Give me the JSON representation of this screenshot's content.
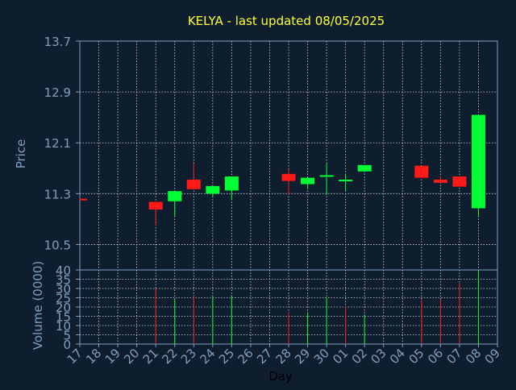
{
  "title": "KELYA - last updated 08/05/2025",
  "colors": {
    "background": "#0f1e2e",
    "title": "#ffff33",
    "axis_text": "#7f9fbf",
    "frame": "#7f9fbf",
    "grid": "#d0d8e0",
    "up": "#00ff33",
    "down": "#ff1a1a"
  },
  "chart_data": [
    {
      "type": "candlestick",
      "ylabel": "Price",
      "ylim": [
        10.1,
        13.7
      ],
      "yticks": [
        "13.7",
        "12.9",
        "12.1",
        "11.3",
        "10.5"
      ],
      "grid": true,
      "candles": [
        {
          "day": "17",
          "open": 11.22,
          "close": 11.2,
          "high": 11.22,
          "low": 11.2
        },
        {
          "day": "21",
          "open": 11.17,
          "close": 11.05,
          "high": 11.17,
          "low": 10.8
        },
        {
          "day": "22",
          "open": 11.18,
          "close": 11.34,
          "high": 11.34,
          "low": 10.95
        },
        {
          "day": "23",
          "open": 11.52,
          "close": 11.37,
          "high": 11.77,
          "low": 11.37
        },
        {
          "day": "24",
          "open": 11.3,
          "close": 11.42,
          "high": 11.42,
          "low": 11.25
        },
        {
          "day": "25",
          "open": 11.35,
          "close": 11.57,
          "high": 11.57,
          "low": 11.2
        },
        {
          "day": "28",
          "open": 11.61,
          "close": 11.5,
          "high": 11.69,
          "low": 11.28
        },
        {
          "day": "29",
          "open": 11.45,
          "close": 11.55,
          "high": 11.55,
          "low": 11.37
        },
        {
          "day": "30",
          "open": 11.57,
          "close": 11.59,
          "high": 11.77,
          "low": 11.28
        },
        {
          "day": "01",
          "open": 11.52,
          "close": 11.52,
          "high": 11.6,
          "low": 11.34
        },
        {
          "day": "02",
          "open": 11.65,
          "close": 11.75,
          "high": 11.75,
          "low": 11.65
        },
        {
          "day": "05",
          "open": 11.74,
          "close": 11.55,
          "high": 11.74,
          "low": 11.55
        },
        {
          "day": "06",
          "open": 11.52,
          "close": 11.47,
          "high": 11.57,
          "low": 11.47
        },
        {
          "day": "07",
          "open": 11.57,
          "close": 11.41,
          "high": 11.57,
          "low": 11.41
        },
        {
          "day": "08",
          "open": 11.07,
          "close": 12.54,
          "high": 12.54,
          "low": 10.95
        }
      ]
    },
    {
      "type": "bar",
      "ylabel": "Volume (0000)",
      "ylim": [
        0,
        40
      ],
      "yticks": [
        "40",
        "35",
        "30",
        "25",
        "20",
        "15",
        "10",
        "5",
        "0"
      ],
      "xlabel": "Day",
      "xticks": [
        "17",
        "18",
        "19",
        "20",
        "21",
        "22",
        "23",
        "24",
        "25",
        "26",
        "27",
        "28",
        "29",
        "30",
        "01",
        "02",
        "03",
        "04",
        "05",
        "06",
        "07",
        "08",
        "09"
      ],
      "bars": [
        {
          "day": "21",
          "value": 30,
          "dir": "down"
        },
        {
          "day": "22",
          "value": 24,
          "dir": "up"
        },
        {
          "day": "23",
          "value": 26,
          "dir": "down"
        },
        {
          "day": "24",
          "value": 26,
          "dir": "up"
        },
        {
          "day": "25",
          "value": 26,
          "dir": "up"
        },
        {
          "day": "28",
          "value": 17,
          "dir": "down"
        },
        {
          "day": "29",
          "value": 17,
          "dir": "up"
        },
        {
          "day": "30",
          "value": 25,
          "dir": "up"
        },
        {
          "day": "01",
          "value": 20,
          "dir": "down"
        },
        {
          "day": "02",
          "value": 16,
          "dir": "up"
        },
        {
          "day": "05",
          "value": 24,
          "dir": "down"
        },
        {
          "day": "06",
          "value": 24,
          "dir": "down"
        },
        {
          "day": "07",
          "value": 33,
          "dir": "down"
        },
        {
          "day": "08",
          "value": 40,
          "dir": "up"
        }
      ]
    }
  ]
}
